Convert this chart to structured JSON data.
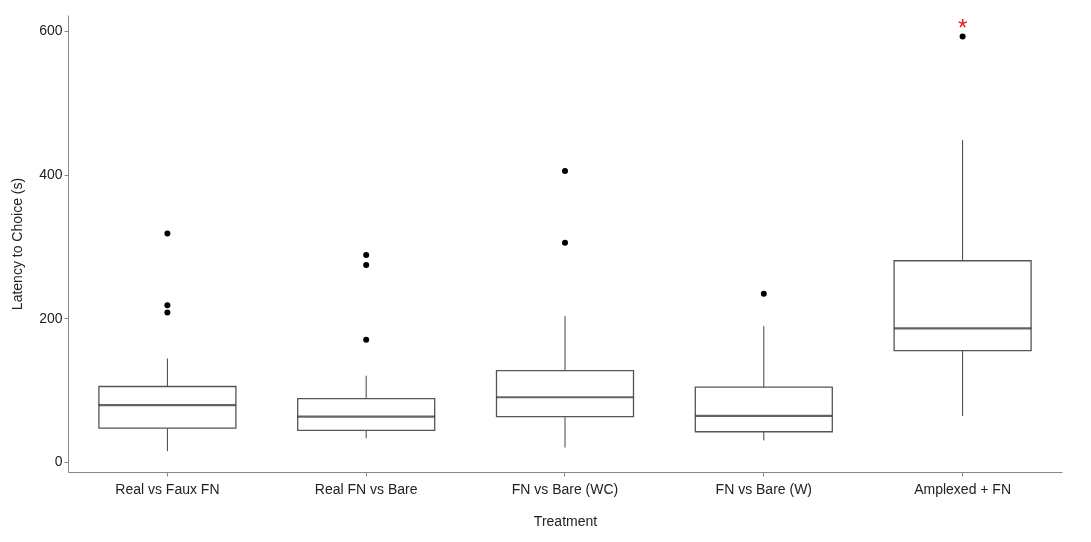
{
  "chart_data": {
    "type": "box",
    "xlabel": "Treatment",
    "ylabel": "Latency to Choice (s)",
    "categories": [
      "Real vs Faux FN",
      "Real FN vs Bare",
      "FN vs Bare (WC)",
      "FN vs Bare (W)",
      "Amplexed + FN"
    ],
    "boxes": [
      {
        "low": 15,
        "q1": 47,
        "median": 79,
        "q3": 105,
        "high": 144,
        "outliers": [
          318,
          218,
          208
        ]
      },
      {
        "low": 33,
        "q1": 44,
        "median": 63,
        "q3": 88,
        "high": 120,
        "outliers": [
          288,
          274,
          170
        ]
      },
      {
        "low": 20,
        "q1": 63,
        "median": 90,
        "q3": 127,
        "high": 203,
        "outliers": [
          405,
          305
        ]
      },
      {
        "low": 30,
        "q1": 42,
        "median": 64,
        "q3": 104,
        "high": 189,
        "outliers": [
          234
        ]
      },
      {
        "low": 64,
        "q1": 155,
        "median": 186,
        "q3": 280,
        "high": 448,
        "outliers": [
          592
        ]
      }
    ],
    "ylim": [
      -14,
      622
    ],
    "yticks": [
      0,
      200,
      400,
      600
    ],
    "grid": false,
    "annotations": [
      "*"
    ]
  }
}
